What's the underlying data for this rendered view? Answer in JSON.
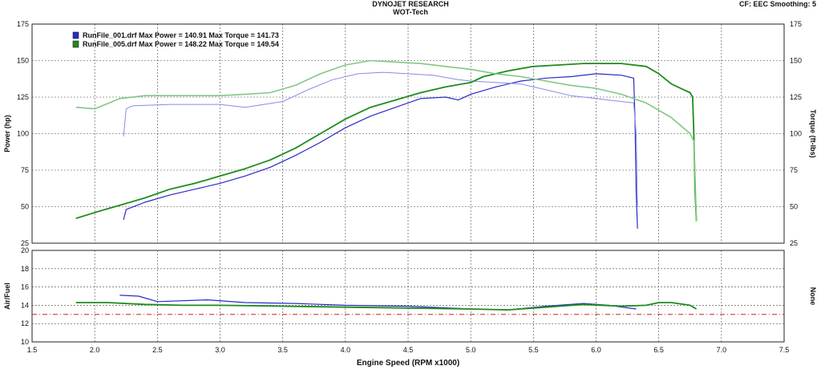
{
  "header": {
    "title": "DYNOJET RESEARCH",
    "subtitle": "WOT-Tech",
    "cf_info": "CF: EEC  Smoothing: 5"
  },
  "colors": {
    "run1": "#2a2ac8",
    "run1_light": "#8a8ae6",
    "run5": "#1e8c1e",
    "run5_light": "#82c882",
    "grid": "#444444",
    "reference": "#cc2222"
  },
  "chart_data": [
    {
      "type": "line",
      "title": "",
      "xlabel": "Engine Speed (RPM x1000)",
      "ylabel": "Power (hp)",
      "ylabel_right": "Torque (ft-lbs)",
      "xlim": [
        1.5,
        7.5
      ],
      "ylim": [
        25,
        175
      ],
      "x_ticks": [
        "1.5",
        "2.0",
        "2.5",
        "3.0",
        "3.5",
        "4.0",
        "4.5",
        "5.0",
        "5.5",
        "6.0",
        "6.5",
        "7.0",
        "7.5"
      ],
      "y_ticks": [
        "25",
        "50",
        "75",
        "100",
        "125",
        "150",
        "175"
      ],
      "y_ticks_right": [
        "25",
        "50",
        "75",
        "100",
        "125",
        "150",
        "175"
      ],
      "grid": true,
      "legend_position": "top-left",
      "legend": [
        {
          "text": "RunFile_001.drf Max Power = 140.91 Max Torque = 141.73",
          "color": "#2a2ac8"
        },
        {
          "text": "RunFile_005.drf Max Power = 148.22 Max Torque = 149.54",
          "color": "#1e8c1e"
        }
      ],
      "series": [
        {
          "name": "RunFile_001.drf Power",
          "color": "#2a2ac8",
          "width": 1.2,
          "points": [
            [
              2.23,
              41
            ],
            [
              2.25,
              48
            ],
            [
              2.4,
              53
            ],
            [
              2.6,
              58
            ],
            [
              2.8,
              62
            ],
            [
              3.0,
              66
            ],
            [
              3.2,
              71
            ],
            [
              3.4,
              77
            ],
            [
              3.6,
              85
            ],
            [
              3.8,
              94
            ],
            [
              4.0,
              104
            ],
            [
              4.2,
              112
            ],
            [
              4.4,
              118
            ],
            [
              4.6,
              124
            ],
            [
              4.8,
              125
            ],
            [
              4.9,
              123
            ],
            [
              5.0,
              127
            ],
            [
              5.2,
              132
            ],
            [
              5.4,
              136
            ],
            [
              5.6,
              138
            ],
            [
              5.8,
              139
            ],
            [
              6.0,
              141
            ],
            [
              6.2,
              140
            ],
            [
              6.3,
              138
            ],
            [
              6.31,
              110
            ],
            [
              6.32,
              60
            ],
            [
              6.33,
              35
            ]
          ]
        },
        {
          "name": "RunFile_001.drf Torque",
          "color": "#8a8ae6",
          "width": 1.0,
          "points": [
            [
              2.23,
              98
            ],
            [
              2.25,
              117
            ],
            [
              2.3,
              119
            ],
            [
              2.6,
              120
            ],
            [
              3.0,
              120
            ],
            [
              3.2,
              118
            ],
            [
              3.5,
              122
            ],
            [
              3.7,
              130
            ],
            [
              3.9,
              137
            ],
            [
              4.1,
              141
            ],
            [
              4.3,
              142
            ],
            [
              4.5,
              141
            ],
            [
              4.7,
              140
            ],
            [
              4.9,
              137
            ],
            [
              5.0,
              136
            ],
            [
              5.2,
              135
            ],
            [
              5.4,
              134
            ],
            [
              5.6,
              130
            ],
            [
              5.8,
              126
            ],
            [
              6.0,
              124
            ],
            [
              6.2,
              122
            ],
            [
              6.3,
              121
            ],
            [
              6.32,
              100
            ],
            [
              6.33,
              50
            ]
          ]
        },
        {
          "name": "RunFile_005.drf Power",
          "color": "#1e8c1e",
          "width": 1.8,
          "points": [
            [
              1.85,
              42
            ],
            [
              2.0,
              46
            ],
            [
              2.2,
              51
            ],
            [
              2.4,
              56
            ],
            [
              2.6,
              62
            ],
            [
              2.8,
              66
            ],
            [
              3.0,
              71
            ],
            [
              3.2,
              76
            ],
            [
              3.4,
              82
            ],
            [
              3.6,
              90
            ],
            [
              3.8,
              100
            ],
            [
              4.0,
              110
            ],
            [
              4.2,
              118
            ],
            [
              4.4,
              123
            ],
            [
              4.6,
              128
            ],
            [
              4.8,
              132
            ],
            [
              5.0,
              135
            ],
            [
              5.1,
              139
            ],
            [
              5.3,
              143
            ],
            [
              5.5,
              146
            ],
            [
              5.7,
              147
            ],
            [
              5.9,
              148
            ],
            [
              6.0,
              148
            ],
            [
              6.2,
              148
            ],
            [
              6.4,
              146
            ],
            [
              6.5,
              141
            ],
            [
              6.6,
              134
            ],
            [
              6.7,
              130
            ],
            [
              6.75,
              128
            ],
            [
              6.77,
              125
            ],
            [
              6.78,
              100
            ],
            [
              6.79,
              60
            ],
            [
              6.8,
              40
            ]
          ]
        },
        {
          "name": "RunFile_005.drf Torque",
          "color": "#82c882",
          "width": 1.6,
          "points": [
            [
              1.85,
              118
            ],
            [
              2.0,
              117
            ],
            [
              2.2,
              124
            ],
            [
              2.4,
              126
            ],
            [
              2.6,
              126
            ],
            [
              2.8,
              126
            ],
            [
              3.0,
              126
            ],
            [
              3.2,
              127
            ],
            [
              3.4,
              128
            ],
            [
              3.6,
              133
            ],
            [
              3.8,
              141
            ],
            [
              4.0,
              147
            ],
            [
              4.2,
              150
            ],
            [
              4.4,
              149
            ],
            [
              4.6,
              148
            ],
            [
              4.8,
              146
            ],
            [
              5.0,
              144
            ],
            [
              5.2,
              141
            ],
            [
              5.4,
              139
            ],
            [
              5.6,
              136
            ],
            [
              5.8,
              133
            ],
            [
              6.0,
              131
            ],
            [
              6.2,
              127
            ],
            [
              6.4,
              121
            ],
            [
              6.6,
              111
            ],
            [
              6.75,
              100
            ],
            [
              6.78,
              95
            ],
            [
              6.79,
              70
            ],
            [
              6.8,
              40
            ]
          ]
        }
      ]
    },
    {
      "type": "line",
      "title": "",
      "xlabel": "Engine Speed (RPM x1000)",
      "ylabel": "Air/Fuel",
      "ylabel_right": "None",
      "xlim": [
        1.5,
        7.5
      ],
      "ylim": [
        10,
        20
      ],
      "y_ticks": [
        "10",
        "12",
        "14",
        "16",
        "18",
        "20"
      ],
      "grid": true,
      "reference_line": 13.0,
      "series": [
        {
          "name": "RunFile_001.drf Air/Fuel",
          "color": "#2a2ac8",
          "width": 1.2,
          "points": [
            [
              2.2,
              15.1
            ],
            [
              2.35,
              15.0
            ],
            [
              2.5,
              14.4
            ],
            [
              2.9,
              14.6
            ],
            [
              3.2,
              14.3
            ],
            [
              3.6,
              14.2
            ],
            [
              4.0,
              14.0
            ],
            [
              4.5,
              13.9
            ],
            [
              5.0,
              13.6
            ],
            [
              5.3,
              13.5
            ],
            [
              5.6,
              13.9
            ],
            [
              5.9,
              14.2
            ],
            [
              6.1,
              14.0
            ],
            [
              6.32,
              13.6
            ]
          ]
        },
        {
          "name": "RunFile_005.drf Air/Fuel",
          "color": "#1e8c1e",
          "width": 1.8,
          "points": [
            [
              1.85,
              14.3
            ],
            [
              2.1,
              14.3
            ],
            [
              2.4,
              14.1
            ],
            [
              2.7,
              14.0
            ],
            [
              3.0,
              14.0
            ],
            [
              3.5,
              13.9
            ],
            [
              4.0,
              13.8
            ],
            [
              4.5,
              13.7
            ],
            [
              5.0,
              13.6
            ],
            [
              5.3,
              13.5
            ],
            [
              5.6,
              13.8
            ],
            [
              5.9,
              14.1
            ],
            [
              6.2,
              13.9
            ],
            [
              6.4,
              14.0
            ],
            [
              6.5,
              14.3
            ],
            [
              6.6,
              14.3
            ],
            [
              6.75,
              14.0
            ],
            [
              6.8,
              13.6
            ]
          ]
        }
      ]
    }
  ]
}
